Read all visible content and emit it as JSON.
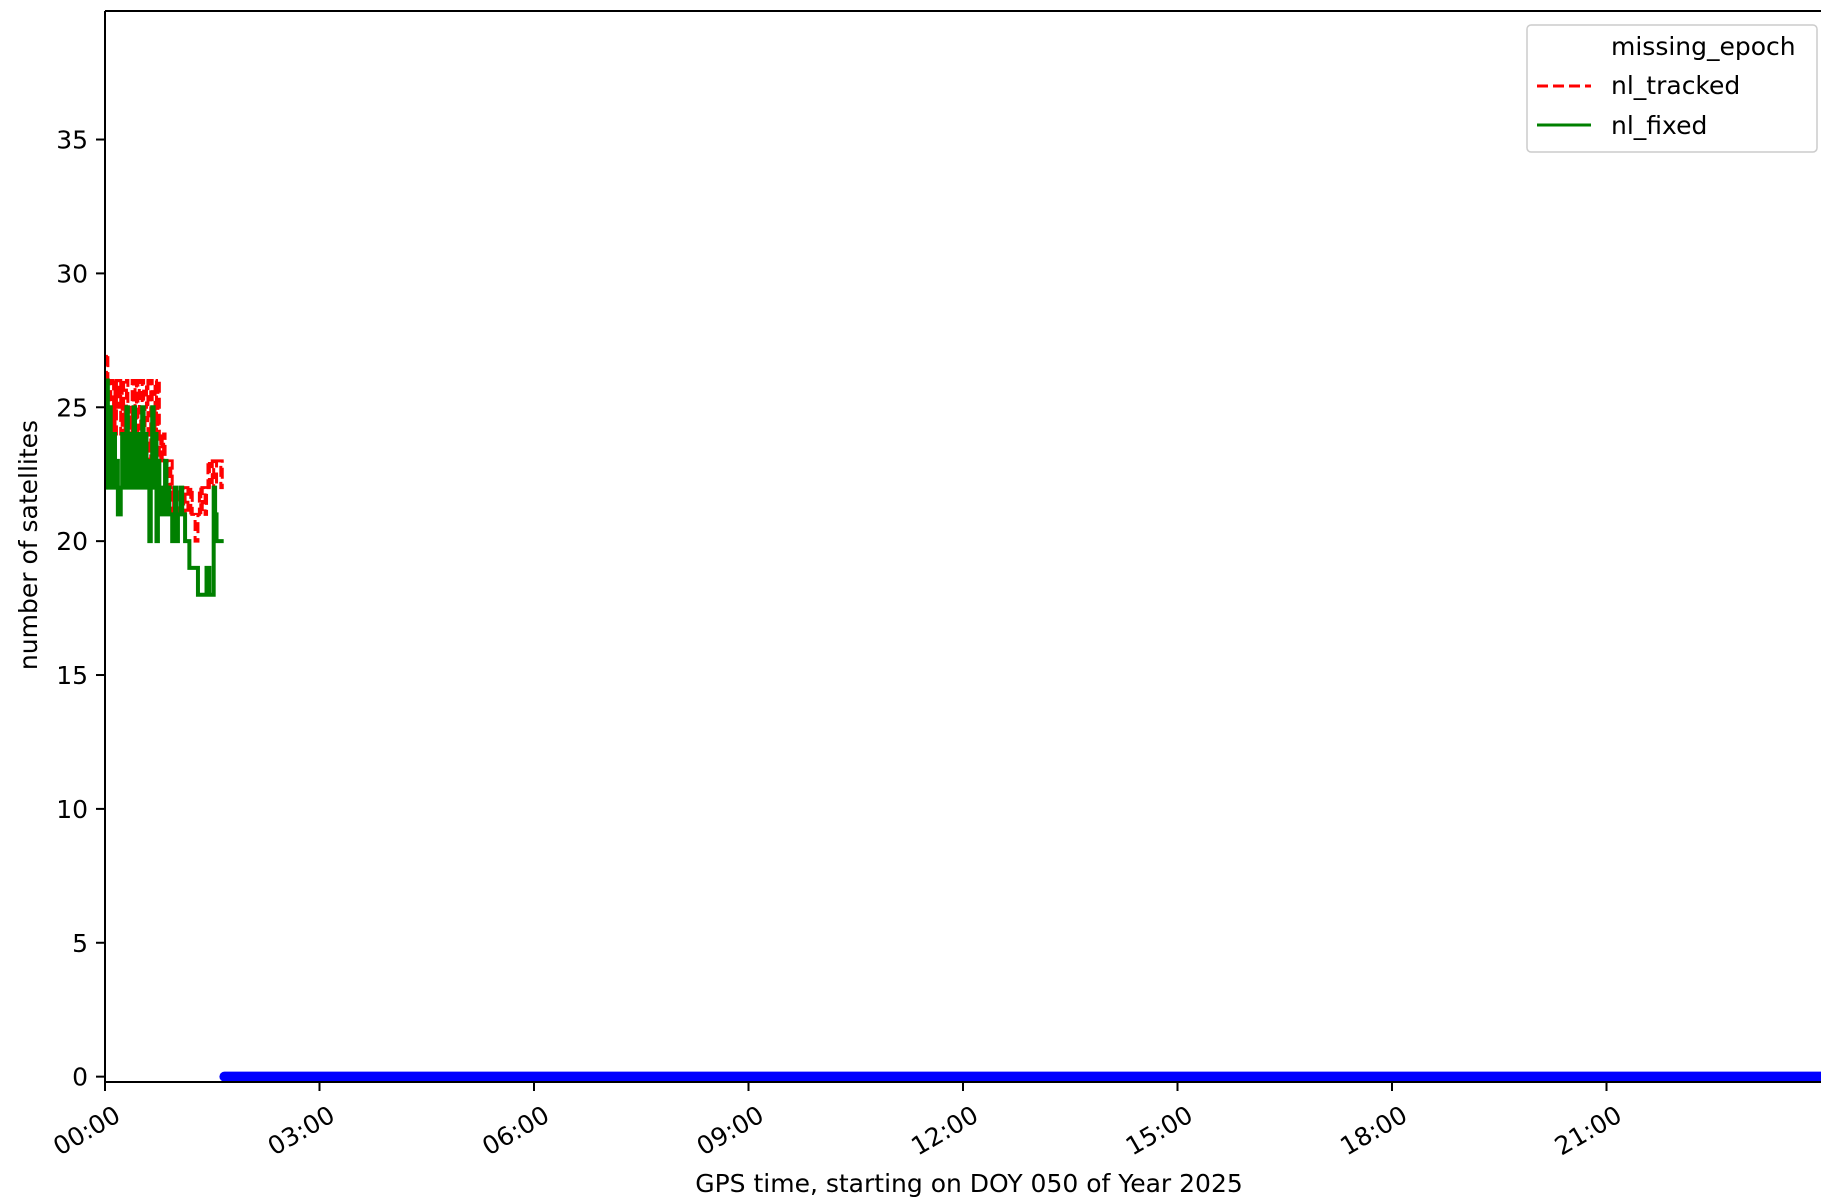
{
  "chart_data": {
    "type": "line",
    "title": "",
    "xlabel": "GPS time, starting on DOY 050 of Year 2025",
    "ylabel": "number of satellites",
    "x_unit": "hours",
    "xlim": [
      0,
      24
    ],
    "ylim": [
      -0.2,
      39.8
    ],
    "x_ticks": [
      {
        "value": 0,
        "label": "00:00"
      },
      {
        "value": 3,
        "label": "03:00"
      },
      {
        "value": 6,
        "label": "06:00"
      },
      {
        "value": 9,
        "label": "09:00"
      },
      {
        "value": 12,
        "label": "12:00"
      },
      {
        "value": 15,
        "label": "15:00"
      },
      {
        "value": 18,
        "label": "18:00"
      },
      {
        "value": 21,
        "label": "21:00"
      }
    ],
    "y_ticks": [
      {
        "value": 0,
        "label": "0"
      },
      {
        "value": 5,
        "label": "5"
      },
      {
        "value": 10,
        "label": "10"
      },
      {
        "value": 15,
        "label": "15"
      },
      {
        "value": 20,
        "label": "20"
      },
      {
        "value": 25,
        "label": "25"
      },
      {
        "value": 30,
        "label": "30"
      },
      {
        "value": 35,
        "label": "35"
      }
    ],
    "grid": false,
    "legend_position": "top-right",
    "legend": [
      {
        "name": "missing_epoch",
        "color": "#0000ff",
        "style": "none"
      },
      {
        "name": "nl_tracked",
        "color": "#ff0000",
        "style": "dashed"
      },
      {
        "name": "nl_fixed",
        "color": "#008000",
        "style": "solid"
      }
    ],
    "series": [
      {
        "name": "nl_tracked",
        "color": "#ff0000",
        "style": "dashed",
        "x": [
          0.0,
          0.02,
          0.04,
          0.06,
          0.08,
          0.1,
          0.12,
          0.14,
          0.16,
          0.18,
          0.2,
          0.22,
          0.24,
          0.26,
          0.28,
          0.3,
          0.32,
          0.34,
          0.36,
          0.38,
          0.4,
          0.42,
          0.44,
          0.46,
          0.48,
          0.5,
          0.52,
          0.54,
          0.56,
          0.58,
          0.6,
          0.62,
          0.64,
          0.66,
          0.68,
          0.7,
          0.72,
          0.74,
          0.76,
          0.78,
          0.8,
          0.82,
          0.84,
          0.86,
          0.88,
          0.9,
          0.92,
          0.94,
          0.96,
          0.98,
          1.0,
          1.02,
          1.04,
          1.06,
          1.08,
          1.1,
          1.12,
          1.14,
          1.16,
          1.18,
          1.2,
          1.22,
          1.24,
          1.26,
          1.28,
          1.3,
          1.32,
          1.34,
          1.36,
          1.38,
          1.4,
          1.42,
          1.44,
          1.46,
          1.48,
          1.5,
          1.52,
          1.54,
          1.56,
          1.58,
          1.6,
          1.62,
          1.64,
          1.66
        ],
        "y": [
          26,
          27,
          24,
          26,
          25,
          23,
          26,
          24,
          26,
          25,
          26,
          24,
          26,
          23,
          25,
          26,
          24,
          25,
          22,
          26,
          24,
          26,
          23,
          26,
          25,
          24,
          26,
          22,
          25,
          26,
          24,
          23,
          26,
          25,
          22,
          26,
          24,
          26,
          23,
          24,
          23,
          24,
          22,
          23,
          23,
          22,
          23,
          21,
          22,
          22,
          21,
          22,
          22,
          21,
          22,
          21,
          22,
          22,
          21,
          21,
          22,
          21,
          21,
          20,
          20,
          21,
          22,
          21,
          22,
          22,
          21,
          22,
          23,
          22,
          22,
          23,
          21,
          22,
          23,
          23,
          23,
          22,
          23,
          23
        ]
      },
      {
        "name": "nl_fixed",
        "color": "#008000",
        "style": "solid",
        "x": [
          0.0,
          0.02,
          0.04,
          0.06,
          0.08,
          0.1,
          0.12,
          0.14,
          0.16,
          0.18,
          0.2,
          0.22,
          0.24,
          0.26,
          0.28,
          0.3,
          0.32,
          0.34,
          0.36,
          0.38,
          0.4,
          0.42,
          0.44,
          0.46,
          0.48,
          0.5,
          0.52,
          0.54,
          0.56,
          0.58,
          0.6,
          0.62,
          0.64,
          0.66,
          0.68,
          0.7,
          0.72,
          0.74,
          0.76,
          0.78,
          0.8,
          0.82,
          0.84,
          0.86,
          0.88,
          0.9,
          0.92,
          0.94,
          0.96,
          0.98,
          1.0,
          1.02,
          1.04,
          1.06,
          1.08,
          1.1,
          1.12,
          1.14,
          1.16,
          1.18,
          1.2,
          1.22,
          1.24,
          1.26,
          1.28,
          1.3,
          1.32,
          1.34,
          1.36,
          1.38,
          1.4,
          1.42,
          1.44,
          1.46,
          1.48,
          1.5,
          1.52,
          1.54,
          1.56,
          1.58,
          1.6,
          1.62,
          1.64,
          1.66
        ],
        "y": [
          24,
          26,
          22,
          25,
          23,
          22,
          24,
          22,
          23,
          21,
          21,
          22,
          24,
          23,
          22,
          25,
          23,
          22,
          24,
          22,
          25,
          23,
          22,
          24,
          22,
          23,
          25,
          22,
          24,
          23,
          22,
          20,
          23,
          25,
          22,
          24,
          20,
          23,
          22,
          21,
          21,
          22,
          23,
          21,
          22,
          21,
          21,
          20,
          21,
          22,
          20,
          21,
          21,
          22,
          21,
          21,
          20,
          20,
          20,
          19,
          19,
          19,
          19,
          19,
          19,
          18,
          18,
          18,
          18,
          18,
          18,
          19,
          19,
          18,
          18,
          18,
          22,
          21,
          20,
          20,
          20,
          20,
          20,
          20
        ]
      },
      {
        "name": "missing_epoch",
        "color": "#0000ff",
        "style": "markers",
        "x_start": 1.67,
        "x_end": 24,
        "y": 0
      }
    ]
  }
}
